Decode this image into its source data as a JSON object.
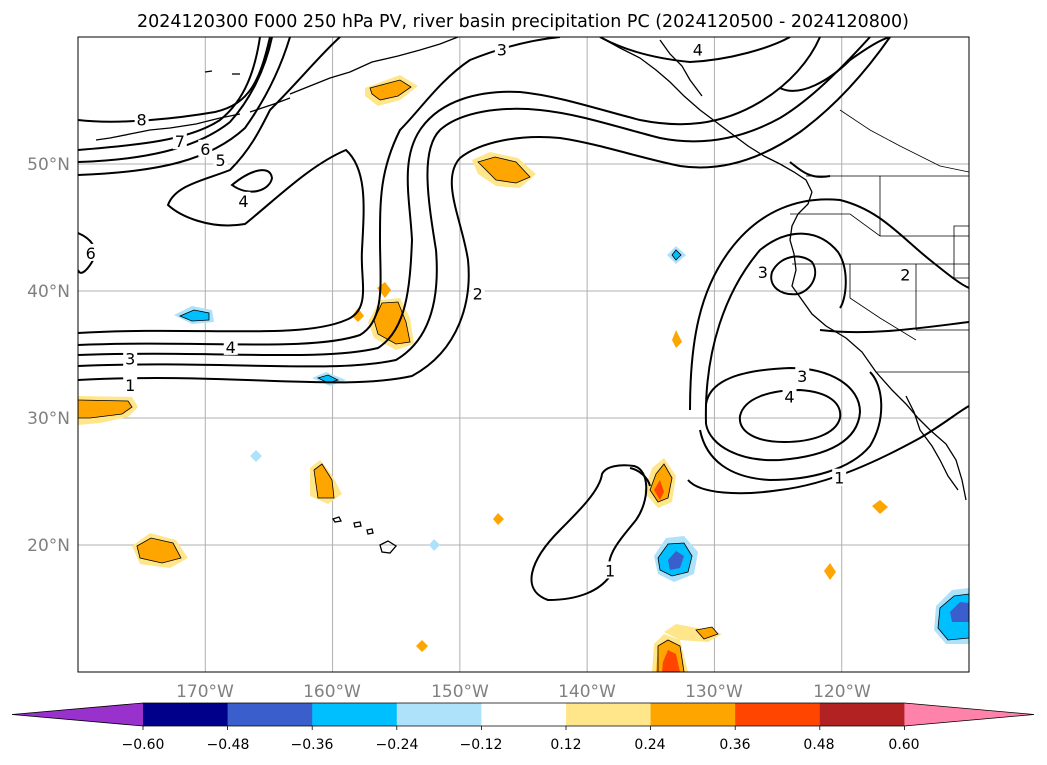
{
  "title": "2024120300 F000 250 hPa PV, river basin precipitation PC (2024120500 - 2024120800)",
  "chart_data": {
    "type": "contour",
    "title": "2024120300 F000 250 hPa PV, river basin precipitation PC (2024120500 - 2024120800)",
    "xaxis": {
      "range": [
        -180,
        -110
      ],
      "ticks": [
        -170,
        -160,
        -150,
        -140,
        -130,
        -120
      ],
      "tick_labels": [
        "170°W",
        "160°W",
        "150°W",
        "140°W",
        "130°W",
        "120°W"
      ]
    },
    "yaxis": {
      "range": [
        10,
        60
      ],
      "ticks": [
        20,
        30,
        40,
        50
      ],
      "tick_labels": [
        "20°N",
        "30°N",
        "40°N",
        "50°N"
      ]
    },
    "grid": true,
    "pv_contour_labels": [
      {
        "text": "8",
        "lon": -175,
        "lat": 53.5
      },
      {
        "text": "7",
        "lon": -172,
        "lat": 51.8
      },
      {
        "text": "6",
        "lon": -170,
        "lat": 51.2
      },
      {
        "text": "5",
        "lon": -168.8,
        "lat": 50.3
      },
      {
        "text": "4",
        "lon": -167,
        "lat": 47.1
      },
      {
        "text": "6",
        "lon": -179,
        "lat": 43
      },
      {
        "text": "3",
        "lon": -146.7,
        "lat": 59
      },
      {
        "text": "4",
        "lon": -131.3,
        "lat": 59
      },
      {
        "text": "2",
        "lon": -148.6,
        "lat": 39.8
      },
      {
        "text": "4",
        "lon": -168,
        "lat": 35.6
      },
      {
        "text": "3",
        "lon": -175.9,
        "lat": 34.7
      },
      {
        "text": "1",
        "lon": -175.9,
        "lat": 32.6
      },
      {
        "text": "3",
        "lon": -126.2,
        "lat": 41.5
      },
      {
        "text": "2",
        "lon": -115,
        "lat": 41.3
      },
      {
        "text": "3",
        "lon": -123.1,
        "lat": 33.3
      },
      {
        "text": "4",
        "lon": -124.1,
        "lat": 31.7
      },
      {
        "text": "1",
        "lon": -120.2,
        "lat": 25.3
      },
      {
        "text": "1",
        "lon": -138.2,
        "lat": 18
      }
    ],
    "colorbar": {
      "boundaries": [
        -0.6,
        -0.48,
        -0.36,
        -0.24,
        -0.12,
        0.12,
        0.24,
        0.36,
        0.48,
        0.6
      ],
      "tick_labels": [
        "−0.60",
        "−0.48",
        "−0.36",
        "−0.24",
        "−0.12",
        "0.12",
        "0.24",
        "0.36",
        "0.48",
        "0.60"
      ],
      "colors": [
        "#9932cc",
        "#00008b",
        "#3a5fcd",
        "#00bfff",
        "#aee2fa",
        "#ffffff",
        "#ffe68a",
        "#ffa500",
        "#ff4500",
        "#b22222",
        "#ff82ab"
      ],
      "extend": "both"
    }
  }
}
